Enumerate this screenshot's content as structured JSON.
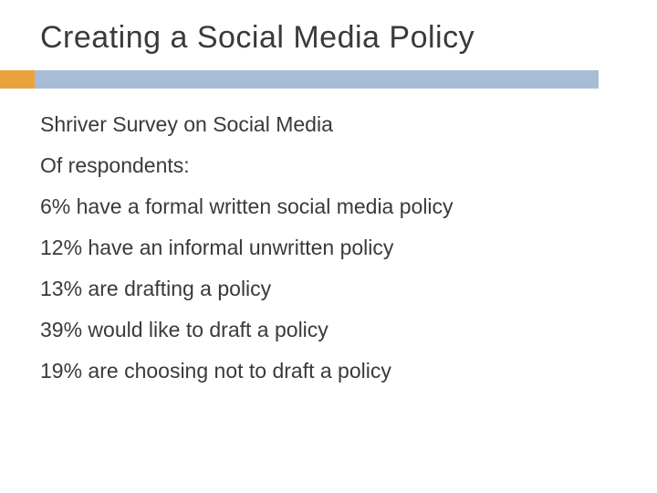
{
  "title": "Creating a Social Media Policy",
  "subtitle": "Shriver Survey on Social Media",
  "intro": "Of respondents:",
  "items": [
    {
      "percent": " 6%",
      "text": " have a formal written social media policy"
    },
    {
      "percent": "12%",
      "text": " have an informal unwritten policy"
    },
    {
      "percent": "13%",
      "text": " are drafting a policy"
    },
    {
      "percent": "39%",
      "text": " would like to draft a policy"
    },
    {
      "percent": "19%",
      "text": " are choosing not to draft a policy"
    }
  ],
  "colors": {
    "accent_orange": "#e8a33d",
    "accent_blue": "#a7bcd6",
    "text": "#3a3a3a",
    "background": "#ffffff"
  }
}
